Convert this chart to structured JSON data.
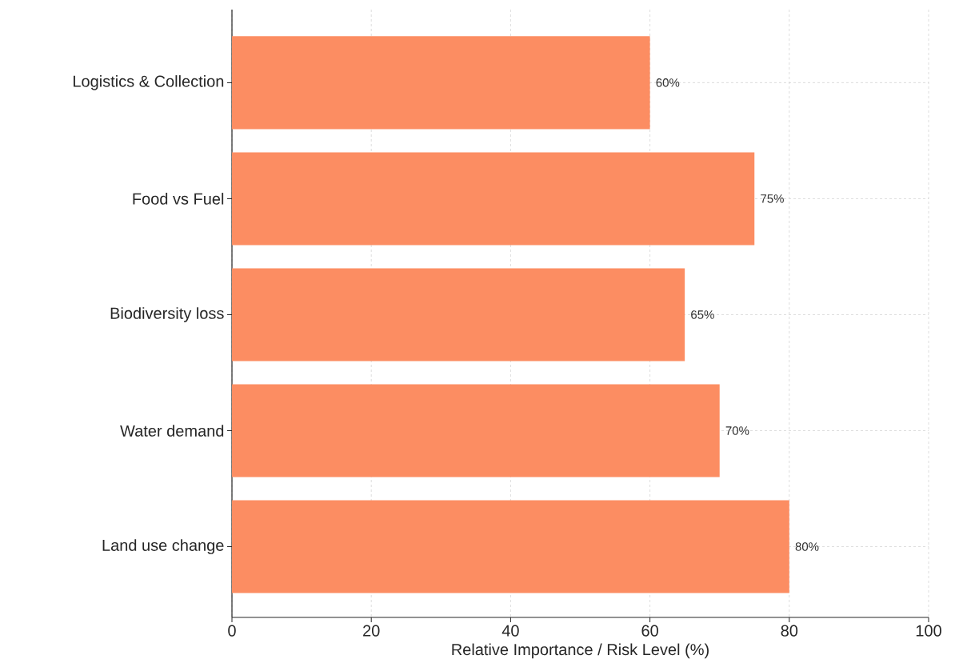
{
  "chart_data": {
    "type": "bar",
    "orientation": "horizontal",
    "xlabel": "Relative Importance / Risk Level (%)",
    "categories": [
      "Logistics & Collection",
      "Food vs Fuel",
      "Biodiversity loss",
      "Water demand",
      "Land use change"
    ],
    "values": [
      60,
      75,
      65,
      70,
      80
    ],
    "value_labels": [
      "60%",
      "75%",
      "65%",
      "70%",
      "80%"
    ],
    "color": "#fc8d62",
    "xlim": [
      0,
      100
    ],
    "xticks": [
      0,
      20,
      40,
      60,
      80,
      100
    ],
    "grid": true
  }
}
